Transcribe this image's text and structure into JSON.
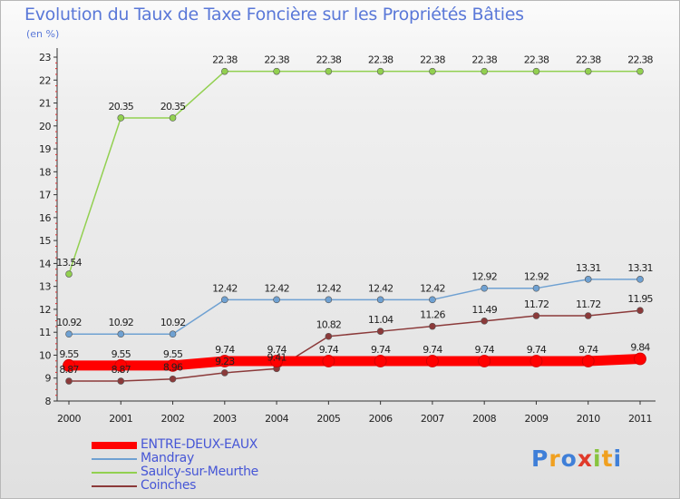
{
  "chart_data": {
    "type": "line",
    "title": "Evolution du Taux de Taxe Foncière sur les Propriétés Bâties",
    "subtitle": "(en %)",
    "categories": [
      "2000",
      "2001",
      "2002",
      "2003",
      "2004",
      "2005",
      "2006",
      "2007",
      "2008",
      "2009",
      "2010",
      "2011"
    ],
    "ylim": [
      8,
      23
    ],
    "yticks": [
      "8",
      "9",
      "10",
      "11",
      "12",
      "13",
      "14",
      "15",
      "16",
      "17",
      "18",
      "19",
      "20",
      "21",
      "22",
      "23"
    ],
    "grid": false,
    "series": [
      {
        "name": "ENTRE-DEUX-EAUX",
        "color": "#ff0000",
        "values": [
          9.55,
          9.55,
          9.55,
          9.74,
          9.74,
          9.74,
          9.74,
          9.74,
          9.74,
          9.74,
          9.74,
          9.84
        ],
        "labels": [
          "9.55",
          "9.55",
          "9.55",
          "9.74",
          "9.74",
          "9.74",
          "9.74",
          "9.74",
          "9.74",
          "9.74",
          "9.74",
          "9.84"
        ]
      },
      {
        "name": "Mandray",
        "color": "#6fa1d2",
        "values": [
          10.92,
          10.92,
          10.92,
          12.42,
          12.42,
          12.42,
          12.42,
          12.42,
          12.92,
          12.92,
          13.31,
          13.31
        ],
        "labels": [
          "10.92",
          "10.92",
          "10.92",
          "12.42",
          "12.42",
          "12.42",
          "12.42",
          "12.42",
          "12.92",
          "12.92",
          "13.31",
          "13.31"
        ]
      },
      {
        "name": "Saulcy-sur-Meurthe",
        "color": "#92d050",
        "values": [
          13.54,
          20.35,
          20.35,
          22.38,
          22.38,
          22.38,
          22.38,
          22.38,
          22.38,
          22.38,
          22.38,
          22.38
        ],
        "labels": [
          "13.54",
          "20.35",
          "20.35",
          "22.38",
          "22.38",
          "22.38",
          "22.38",
          "22.38",
          "22.38",
          "22.38",
          "22.38",
          "22.38"
        ]
      },
      {
        "name": "Coinches",
        "color": "#8b3a3a",
        "values": [
          8.87,
          8.87,
          8.96,
          9.23,
          9.41,
          10.82,
          11.04,
          11.26,
          11.49,
          11.72,
          11.72,
          11.95
        ],
        "labels": [
          "8.87",
          "8.87",
          "8.96",
          "9.23",
          "9.41",
          "10.82",
          "11.04",
          "11.26",
          "11.49",
          "11.72",
          "11.72",
          "11.95"
        ]
      }
    ]
  },
  "legend": {
    "items": [
      {
        "label": "ENTRE-DEUX-EAUX"
      },
      {
        "label": "Mandray"
      },
      {
        "label": "Saulcy-sur-Meurthe"
      },
      {
        "label": "Coinches"
      }
    ]
  },
  "logo": {
    "letters": [
      "P",
      "r",
      "o",
      "x",
      "i",
      "t",
      "i"
    ],
    "colors": [
      "#3f7fd8",
      "#f0a020",
      "#3f7fd8",
      "#e03a2a",
      "#88c43f",
      "#f0a020",
      "#3f7fd8"
    ]
  }
}
